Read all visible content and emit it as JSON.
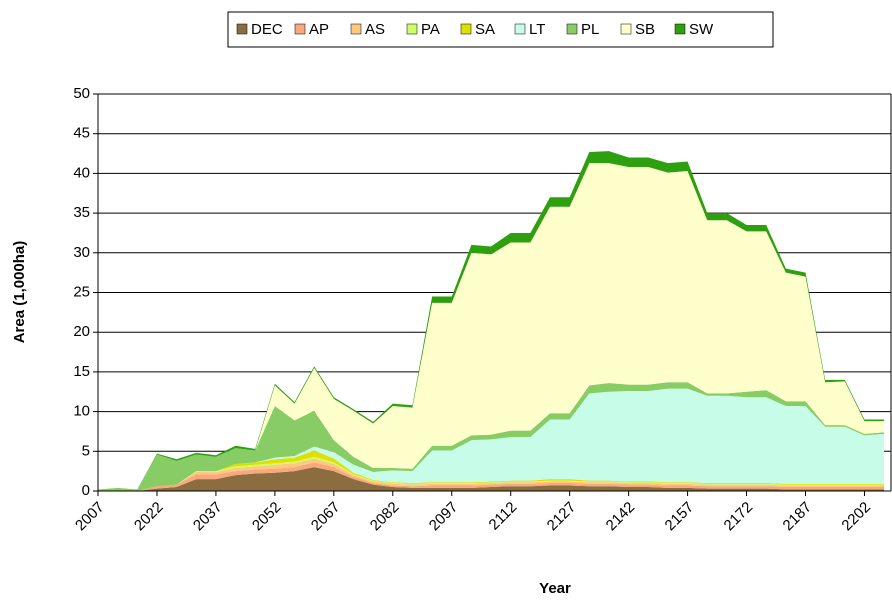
{
  "chart_data": {
    "type": "stacked_area",
    "x_label": "Year",
    "y_label": "Area (1,000ha)",
    "categories": [
      "2007",
      null,
      null,
      "2022",
      null,
      null,
      "2037",
      null,
      null,
      "2052",
      null,
      null,
      "2067",
      null,
      null,
      "2082",
      null,
      null,
      "2097",
      null,
      null,
      "2112",
      null,
      null,
      "2127",
      null,
      null,
      "2142",
      null,
      null,
      "2157",
      null,
      null,
      "2172",
      null,
      null,
      "2187",
      null,
      null,
      "2202",
      null
    ],
    "ylim": [
      0,
      50
    ],
    "yticks": [
      0,
      5,
      10,
      15,
      20,
      25,
      30,
      35,
      40,
      45,
      50
    ],
    "grid": true,
    "legend": "top",
    "series": [
      {
        "name": "DEC",
        "color": "#8c6d3f",
        "values": [
          0,
          0,
          0,
          0.3,
          0.5,
          1.5,
          1.5,
          2,
          2.2,
          2.3,
          2.5,
          3,
          2.5,
          1.5,
          0.8,
          0.5,
          0.4,
          0.4,
          0.4,
          0.4,
          0.5,
          0.6,
          0.6,
          0.7,
          0.7,
          0.6,
          0.6,
          0.5,
          0.5,
          0.4,
          0.4,
          0.3,
          0.3,
          0.3,
          0.3,
          0.2,
          0.2,
          0.2,
          0.2,
          0.2,
          0.2
        ]
      },
      {
        "name": "AP",
        "color": "#f9a77c",
        "values": [
          0,
          0,
          0,
          0.3,
          0.3,
          0.6,
          0.6,
          0.5,
          0.5,
          0.5,
          0.5,
          0.6,
          0.5,
          0.3,
          0.2,
          0.2,
          0.2,
          0.3,
          0.3,
          0.3,
          0.3,
          0.3,
          0.3,
          0.3,
          0.3,
          0.3,
          0.3,
          0.3,
          0.3,
          0.3,
          0.3,
          0.3,
          0.3,
          0.3,
          0.3,
          0.3,
          0.3,
          0.3,
          0.3,
          0.3,
          0.3
        ]
      },
      {
        "name": "AS",
        "color": "#fcc97e",
        "values": [
          0,
          0,
          0,
          0,
          0,
          0.3,
          0.3,
          0.4,
          0.4,
          0.5,
          0.5,
          0.5,
          0.4,
          0.2,
          0.2,
          0.2,
          0.2,
          0.2,
          0.2,
          0.2,
          0.2,
          0.2,
          0.2,
          0.2,
          0.2,
          0.2,
          0.2,
          0.2,
          0.2,
          0.2,
          0.2,
          0.2,
          0.2,
          0.2,
          0.2,
          0.2,
          0.2,
          0.2,
          0.2,
          0.2,
          0.2
        ]
      },
      {
        "name": "PA",
        "color": "#ccff66",
        "values": [
          0,
          0,
          0,
          0,
          0,
          0.1,
          0.1,
          0.2,
          0.2,
          0.2,
          0.2,
          0.2,
          0.2,
          0.1,
          0.1,
          0.1,
          0.1,
          0.1,
          0.1,
          0.1,
          0.1,
          0.1,
          0.1,
          0.1,
          0.1,
          0.1,
          0.1,
          0.1,
          0.1,
          0.1,
          0.1,
          0.1,
          0.1,
          0.1,
          0.1,
          0.1,
          0.1,
          0.1,
          0.1,
          0.1,
          0.1
        ]
      },
      {
        "name": "SA",
        "color": "#e0e000",
        "values": [
          0,
          0,
          0,
          0,
          0,
          0,
          0,
          0.3,
          0.3,
          0.5,
          0.5,
          0.8,
          0.5,
          0.2,
          0.1,
          0.1,
          0.1,
          0.1,
          0.1,
          0.1,
          0.1,
          0.1,
          0.1,
          0.2,
          0.2,
          0.1,
          0.1,
          0.1,
          0.1,
          0.1,
          0.1,
          0.1,
          0.1,
          0.1,
          0.1,
          0.1,
          0.1,
          0.1,
          0.1,
          0.1,
          0.1
        ]
      },
      {
        "name": "LT",
        "color": "#c6fce8",
        "values": [
          0,
          0,
          0,
          0,
          0,
          0,
          0,
          0,
          0,
          0.2,
          0.2,
          0.5,
          0.8,
          1,
          1,
          1.5,
          1.5,
          4,
          4,
          5.3,
          5.3,
          5.5,
          5.5,
          7.5,
          7.5,
          11,
          11.2,
          11.4,
          11.4,
          11.8,
          11.8,
          11,
          11,
          10.8,
          10.8,
          9.8,
          9.8,
          7.2,
          7.2,
          6.1,
          6.3
        ]
      },
      {
        "name": "PL",
        "color": "#88cc66",
        "values": [
          0.2,
          0.4,
          0.2,
          4,
          3,
          2.1,
          1.8,
          2,
          1.5,
          6.5,
          4.5,
          4.5,
          1.5,
          1,
          0.5,
          0.3,
          0.3,
          0.6,
          0.6,
          0.6,
          0.6,
          0.8,
          0.8,
          0.8,
          0.8,
          1,
          1.1,
          0.8,
          0.8,
          0.8,
          0.8,
          0.3,
          0.3,
          0.7,
          0.9,
          0.6,
          0.6,
          0.2,
          0.2,
          0.2,
          0.2
        ]
      },
      {
        "name": "SB",
        "color": "#ffffcc",
        "values": [
          0,
          0.1,
          0,
          0,
          0,
          0,
          0,
          0,
          0,
          2.6,
          2.1,
          5.4,
          5.2,
          5.8,
          5.6,
          7.8,
          7.7,
          18,
          18,
          23,
          22.7,
          23.7,
          23.7,
          26,
          26,
          28,
          27.7,
          27.4,
          27.4,
          26.4,
          26.6,
          21.8,
          21.8,
          20.2,
          20,
          16.2,
          15.7,
          5.4,
          5.5,
          1.6,
          1.4
        ]
      },
      {
        "name": "SW",
        "color": "#2ea010",
        "values": [
          0,
          0,
          0,
          0.1,
          0.2,
          0.2,
          0.2,
          0.3,
          0.2,
          0.2,
          0.2,
          0.2,
          0.2,
          0.2,
          0.2,
          0.3,
          0.3,
          0.8,
          0.8,
          1,
          1,
          1.2,
          1.2,
          1.2,
          1.2,
          1.4,
          1.5,
          1.2,
          1.2,
          1.2,
          1.2,
          0.9,
          0.9,
          0.8,
          0.8,
          0.5,
          0.5,
          0.3,
          0.2,
          0.2,
          0.2
        ]
      }
    ]
  }
}
